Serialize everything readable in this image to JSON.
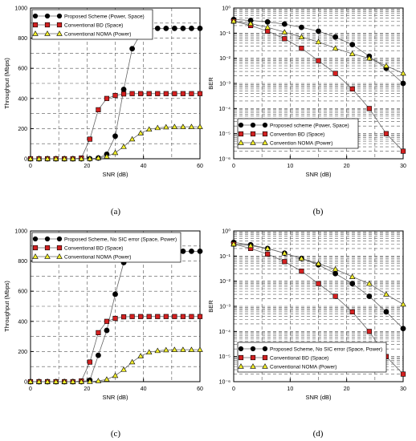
{
  "chart_data": [
    {
      "type": "line",
      "panel_label": "(a)",
      "xlabel": "SNR (dB)",
      "ylabel": "Throughput (Mbps)",
      "xlim": [
        0,
        60
      ],
      "ylim": [
        0,
        1000
      ],
      "yscale": "linear",
      "x_ticks": [
        0,
        20,
        40,
        60
      ],
      "y_ticks": [
        0,
        200,
        400,
        600,
        800,
        1000
      ],
      "x_tick_labels": [
        "0",
        "20",
        "40",
        "60"
      ],
      "y_tick_labels": [
        "0",
        "200",
        "400",
        "600",
        "800",
        "1000"
      ],
      "grid": true,
      "legend_position": "top-left",
      "series": [
        {
          "name": "Proposed Scheme (Power, Space)",
          "color": "#000000",
          "marker": "circle",
          "x": [
            0,
            3,
            6,
            9,
            12,
            15,
            18,
            21,
            24,
            27,
            30,
            33,
            36,
            39,
            42,
            45,
            48,
            51,
            54,
            57,
            60
          ],
          "y": [
            0,
            0,
            0,
            0,
            0,
            0,
            0,
            0,
            5,
            30,
            150,
            460,
            730,
            830,
            860,
            865,
            865,
            865,
            865,
            865,
            865
          ]
        },
        {
          "name": "Conventional BD (Space)",
          "color": "#d42020",
          "marker": "square",
          "x": [
            0,
            3,
            6,
            9,
            12,
            15,
            18,
            21,
            24,
            27,
            30,
            33,
            36,
            39,
            42,
            45,
            48,
            51,
            54,
            57,
            60
          ],
          "y": [
            0,
            0,
            0,
            0,
            0,
            0,
            5,
            130,
            325,
            400,
            420,
            430,
            432,
            432,
            432,
            432,
            432,
            432,
            432,
            432,
            432
          ]
        },
        {
          "name": "Conventional NOMA (Power)",
          "color": "#f2ee2a",
          "marker": "triangle",
          "x": [
            0,
            3,
            6,
            9,
            12,
            15,
            18,
            21,
            24,
            27,
            30,
            33,
            36,
            39,
            42,
            45,
            48,
            51,
            54,
            57,
            60
          ],
          "y": [
            0,
            0,
            0,
            0,
            0,
            0,
            0,
            0,
            5,
            15,
            40,
            80,
            130,
            170,
            195,
            205,
            210,
            212,
            212,
            212,
            212
          ]
        }
      ]
    },
    {
      "type": "line",
      "panel_label": "(b)",
      "xlabel": "SNR (dB)",
      "ylabel": "BER",
      "xlim": [
        0,
        30
      ],
      "ylim": [
        1e-06,
        1
      ],
      "yscale": "log",
      "x_ticks": [
        0,
        10,
        20,
        30
      ],
      "y_ticks": [
        1e-06,
        1e-05,
        0.0001,
        0.001,
        0.01,
        0.1,
        1
      ],
      "x_tick_labels": [
        "0",
        "10",
        "20",
        "30"
      ],
      "y_tick_labels": [
        "10⁻⁶",
        "10⁻⁵",
        "10⁻⁴",
        "10⁻³",
        "10⁻²",
        "10⁻¹",
        "10⁰"
      ],
      "grid": true,
      "legend_position": "bottom-left",
      "series": [
        {
          "name": "Proposed scheme (Power, Space)",
          "color": "#000000",
          "marker": "circle",
          "x": [
            0,
            3,
            6,
            9,
            12,
            15,
            18,
            21,
            24,
            27,
            30
          ],
          "y": [
            0.35,
            0.32,
            0.28,
            0.23,
            0.17,
            0.12,
            0.07,
            0.035,
            0.012,
            0.004,
            0.001
          ]
        },
        {
          "name": "Convention BD (Space)",
          "color": "#d42020",
          "marker": "square",
          "x": [
            0,
            3,
            6,
            9,
            12,
            15,
            18,
            21,
            24,
            27,
            30
          ],
          "y": [
            0.3,
            0.2,
            0.12,
            0.06,
            0.025,
            0.008,
            0.0025,
            0.0006,
            0.0001,
            1e-05,
            2e-06
          ]
        },
        {
          "name": "Convention NOMA (Power)",
          "color": "#f2ee2a",
          "marker": "triangle",
          "x": [
            0,
            3,
            6,
            9,
            12,
            15,
            18,
            21,
            24,
            27,
            30
          ],
          "y": [
            0.3,
            0.24,
            0.17,
            0.11,
            0.07,
            0.045,
            0.025,
            0.015,
            0.01,
            0.005,
            0.0025
          ]
        }
      ]
    },
    {
      "type": "line",
      "panel_label": "(c)",
      "xlabel": "SNR (dB)",
      "ylabel": "Throughput (Mbps)",
      "xlim": [
        0,
        60
      ],
      "ylim": [
        0,
        1000
      ],
      "yscale": "linear",
      "x_ticks": [
        0,
        20,
        40,
        60
      ],
      "y_ticks": [
        0,
        200,
        400,
        600,
        800,
        1000
      ],
      "x_tick_labels": [
        "0",
        "20",
        "40",
        "60"
      ],
      "y_tick_labels": [
        "0",
        "200",
        "400",
        "600",
        "800",
        "1000"
      ],
      "grid": true,
      "legend_position": "top-left",
      "series": [
        {
          "name": "Proposed Scheme, No SIC error (Space, Power)",
          "color": "#000000",
          "marker": "circle",
          "x": [
            0,
            3,
            6,
            9,
            12,
            15,
            18,
            21,
            24,
            27,
            30,
            33,
            36,
            39,
            42,
            45,
            48,
            51,
            54,
            57,
            60
          ],
          "y": [
            0,
            0,
            0,
            0,
            0,
            0,
            0,
            10,
            175,
            340,
            580,
            790,
            835,
            860,
            862,
            865,
            865,
            865,
            865,
            865,
            865
          ]
        },
        {
          "name": "Conventional BD (Space)",
          "color": "#d42020",
          "marker": "square",
          "x": [
            0,
            3,
            6,
            9,
            12,
            15,
            18,
            21,
            24,
            27,
            30,
            33,
            36,
            39,
            42,
            45,
            48,
            51,
            54,
            57,
            60
          ],
          "y": [
            0,
            0,
            0,
            0,
            0,
            0,
            5,
            130,
            325,
            400,
            420,
            430,
            432,
            432,
            432,
            432,
            432,
            432,
            432,
            432,
            432
          ]
        },
        {
          "name": "Conventional NOMA (Power)",
          "color": "#f2ee2a",
          "marker": "triangle",
          "x": [
            0,
            3,
            6,
            9,
            12,
            15,
            18,
            21,
            24,
            27,
            30,
            33,
            36,
            39,
            42,
            45,
            48,
            51,
            54,
            57,
            60
          ],
          "y": [
            0,
            0,
            0,
            0,
            0,
            0,
            0,
            0,
            5,
            15,
            40,
            80,
            130,
            170,
            195,
            205,
            210,
            212,
            212,
            212,
            212
          ]
        }
      ]
    },
    {
      "type": "line",
      "panel_label": "(d)",
      "xlabel": "SNR (dB)",
      "ylabel": "BER",
      "xlim": [
        0,
        30
      ],
      "ylim": [
        1e-06,
        1
      ],
      "yscale": "log",
      "x_ticks": [
        0,
        10,
        20,
        30
      ],
      "y_ticks": [
        1e-06,
        1e-05,
        0.0001,
        0.001,
        0.01,
        0.1,
        1
      ],
      "x_tick_labels": [
        "0",
        "10",
        "20",
        "30"
      ],
      "y_tick_labels": [
        "10⁻⁶",
        "10⁻⁵",
        "10⁻⁴",
        "10⁻³",
        "10⁻²",
        "10⁻¹",
        "10⁰"
      ],
      "grid": true,
      "legend_position": "bottom-left",
      "series": [
        {
          "name": "Proposed Scheme, No SIC error (Space, Power)",
          "color": "#000000",
          "marker": "circle",
          "x": [
            0,
            3,
            6,
            9,
            12,
            15,
            18,
            21,
            24,
            27,
            30
          ],
          "y": [
            0.35,
            0.28,
            0.2,
            0.13,
            0.08,
            0.045,
            0.02,
            0.008,
            0.0025,
            0.0006,
            0.00013
          ]
        },
        {
          "name": "Conventional BD (Space)",
          "color": "#d42020",
          "marker": "square",
          "x": [
            0,
            3,
            6,
            9,
            12,
            15,
            18,
            21,
            24,
            27,
            30
          ],
          "y": [
            0.3,
            0.2,
            0.12,
            0.06,
            0.025,
            0.008,
            0.0025,
            0.0006,
            0.0001,
            1e-05,
            2e-06
          ]
        },
        {
          "name": "Conventional NOMA (Power)",
          "color": "#f2ee2a",
          "marker": "triangle",
          "x": [
            0,
            3,
            6,
            9,
            12,
            15,
            18,
            21,
            24,
            27,
            30
          ],
          "y": [
            0.3,
            0.26,
            0.2,
            0.13,
            0.08,
            0.05,
            0.03,
            0.015,
            0.008,
            0.003,
            0.0012
          ]
        }
      ]
    }
  ]
}
